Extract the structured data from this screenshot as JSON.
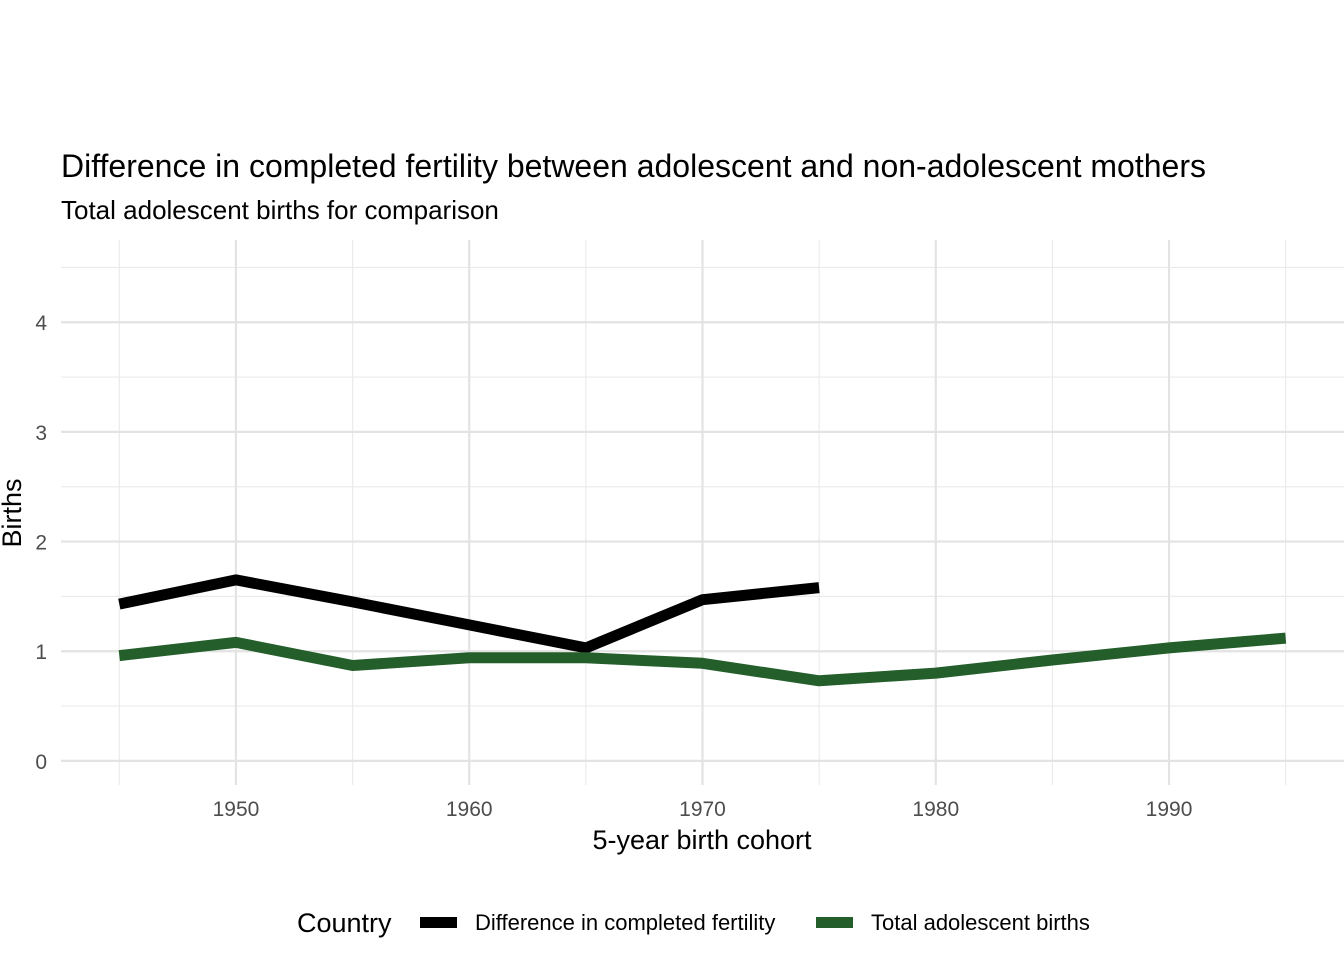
{
  "chart_data": {
    "type": "line",
    "title": "Difference in completed fertility between adolescent and non-adolescent mothers",
    "subtitle": "Total adolescent births for comparison",
    "xlabel": "5-year birth cohort",
    "ylabel": "Births",
    "xlim": [
      1942.5,
      1997.5
    ],
    "ylim": [
      -0.22,
      4.75
    ],
    "x_ticks": [
      1950,
      1960,
      1970,
      1980,
      1990
    ],
    "x_tick_labels": [
      "1950",
      "1960",
      "1970",
      "1980",
      "1990"
    ],
    "x_minor_ticks": [
      1945,
      1955,
      1965,
      1975,
      1985,
      1995
    ],
    "y_ticks": [
      0,
      1,
      2,
      3,
      4
    ],
    "y_tick_labels": [
      "0",
      "1",
      "2",
      "3",
      "4"
    ],
    "y_minor_ticks": [
      0.5,
      1.5,
      2.5,
      3.5,
      4.5
    ],
    "grid": true,
    "legend": {
      "title": "Country",
      "position": "bottom"
    },
    "series": [
      {
        "name": "Difference in completed fertility",
        "color": "#000000",
        "x": [
          1945,
          1950,
          1955,
          1960,
          1965,
          1970,
          1975
        ],
        "y": [
          1.43,
          1.65,
          1.45,
          1.24,
          1.03,
          1.47,
          1.58
        ]
      },
      {
        "name": "Total adolescent births",
        "color": "#235e2b",
        "x": [
          1945,
          1950,
          1955,
          1960,
          1965,
          1970,
          1975,
          1980,
          1985,
          1990,
          1995
        ],
        "y": [
          0.96,
          1.08,
          0.87,
          0.94,
          0.94,
          0.89,
          0.73,
          0.8,
          0.92,
          1.03,
          1.12
        ]
      }
    ]
  }
}
